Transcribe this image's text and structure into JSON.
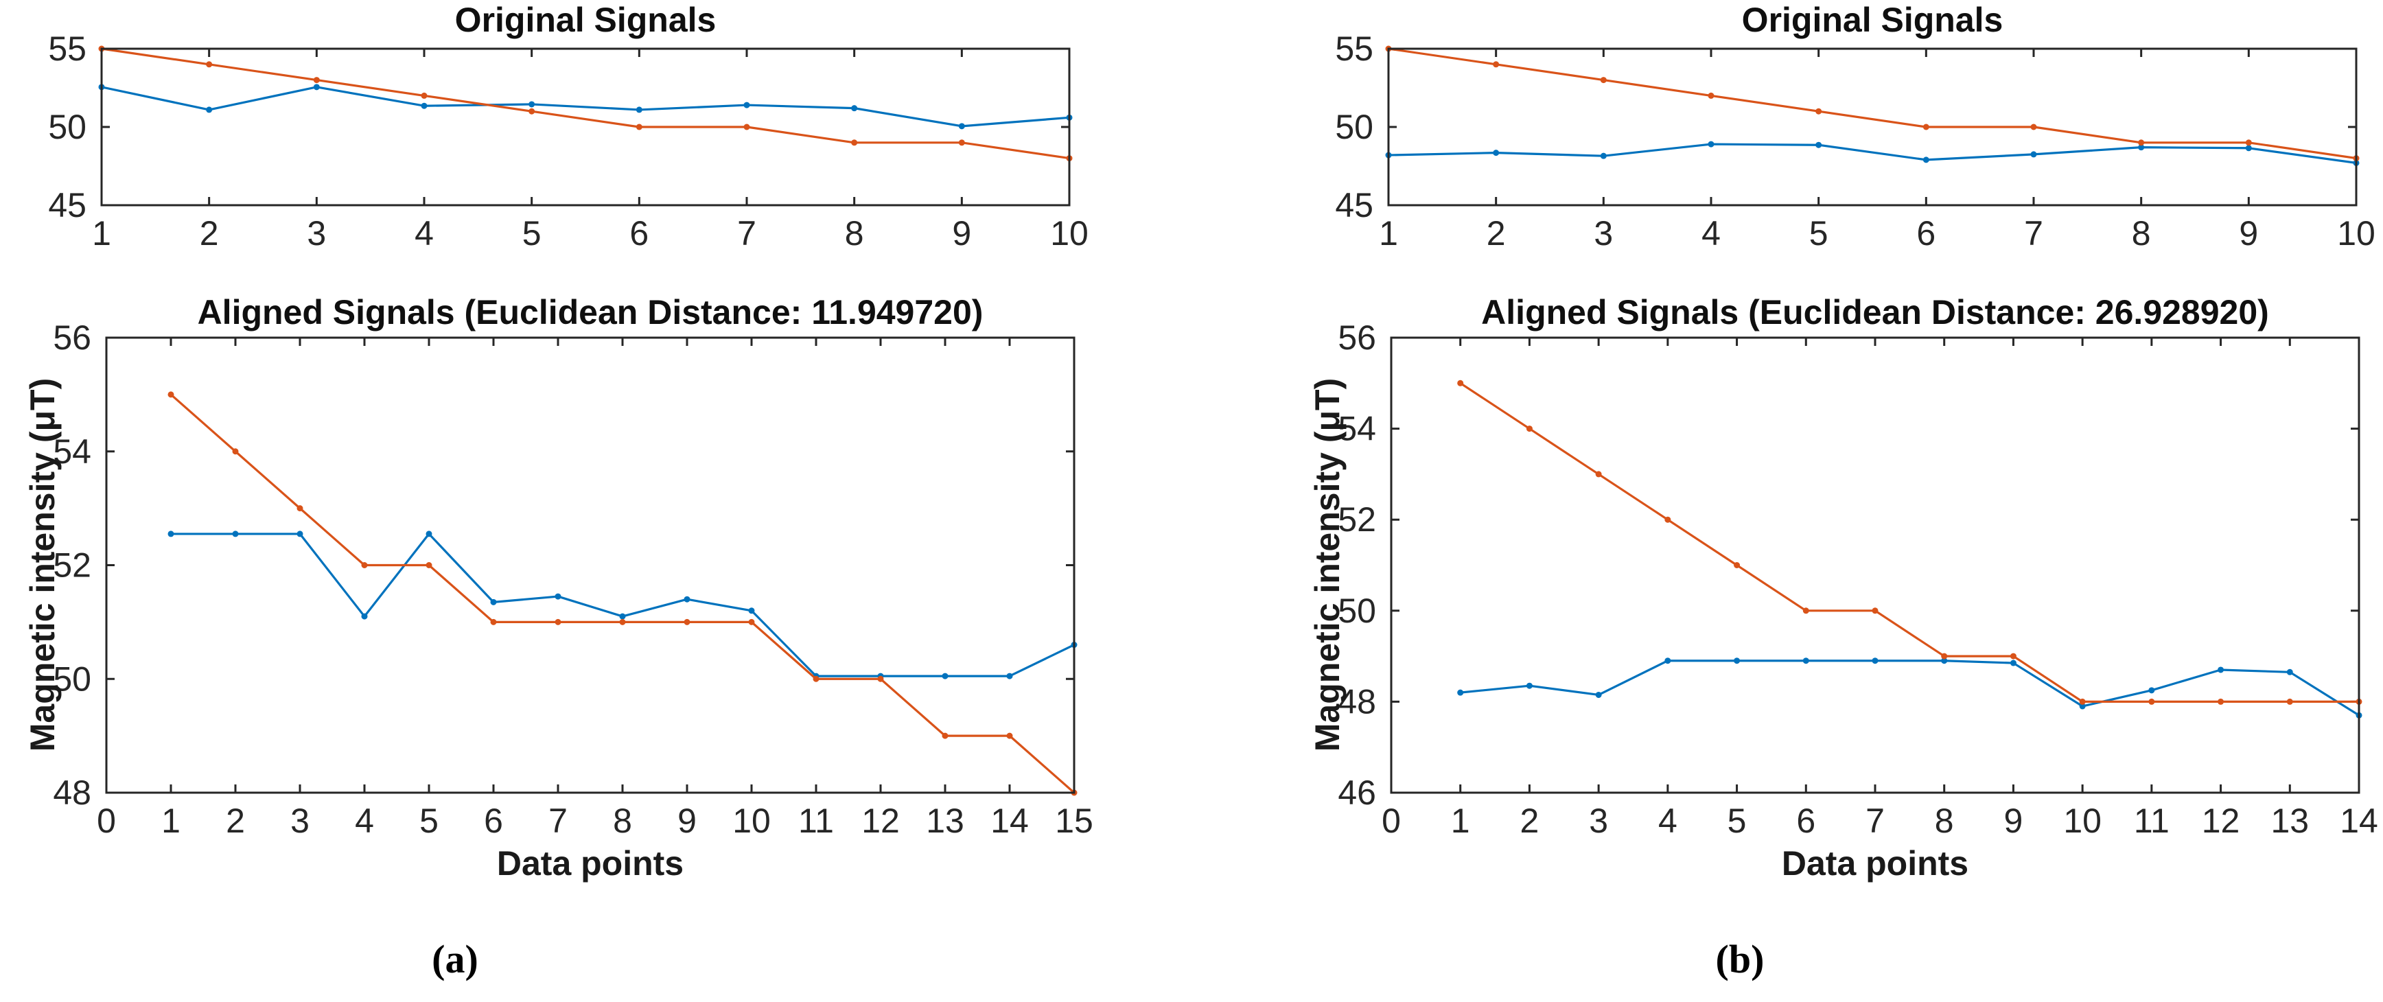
{
  "figure": {
    "background": "#ffffff",
    "captions": {
      "a": "(a)",
      "b": "(b)"
    }
  },
  "colors": {
    "signal_blue": "#0072BD",
    "signal_orange": "#D95319",
    "axis": "#262626"
  },
  "chart_data": [
    {
      "id": "original-a",
      "type": "line",
      "title": "Original Signals",
      "xlabel": "",
      "ylabel": "",
      "xlim": [
        1,
        10
      ],
      "ylim": [
        45,
        55
      ],
      "xticks": [
        1,
        2,
        3,
        4,
        5,
        6,
        7,
        8,
        9,
        10
      ],
      "yticks": [
        45,
        50,
        55
      ],
      "grid": false,
      "legend": "none",
      "series": [
        {
          "name": "measured-signal-blue",
          "color": "#0072BD",
          "x": [
            1,
            2,
            3,
            4,
            5,
            6,
            7,
            8,
            9,
            10
          ],
          "y": [
            52.55,
            51.1,
            52.55,
            51.35,
            51.45,
            51.1,
            51.4,
            51.2,
            50.05,
            50.6
          ]
        },
        {
          "name": "reference-signal-orange",
          "color": "#D95319",
          "x": [
            1,
            2,
            3,
            4,
            5,
            6,
            7,
            8,
            9,
            10
          ],
          "y": [
            55,
            54,
            53,
            52,
            51,
            50,
            50,
            49,
            49,
            48
          ]
        }
      ]
    },
    {
      "id": "original-b",
      "type": "line",
      "title": "Original Signals",
      "xlabel": "",
      "ylabel": "",
      "xlim": [
        1,
        10
      ],
      "ylim": [
        45,
        55
      ],
      "xticks": [
        1,
        2,
        3,
        4,
        5,
        6,
        7,
        8,
        9,
        10
      ],
      "yticks": [
        45,
        50,
        55
      ],
      "grid": false,
      "legend": "none",
      "series": [
        {
          "name": "measured-signal-blue",
          "color": "#0072BD",
          "x": [
            1,
            2,
            3,
            4,
            5,
            6,
            7,
            8,
            9,
            10
          ],
          "y": [
            48.2,
            48.35,
            48.15,
            48.9,
            48.85,
            47.9,
            48.25,
            48.7,
            48.65,
            47.7
          ]
        },
        {
          "name": "reference-signal-orange",
          "color": "#D95319",
          "x": [
            1,
            2,
            3,
            4,
            5,
            6,
            7,
            8,
            9,
            10
          ],
          "y": [
            55,
            54,
            53,
            52,
            51,
            50,
            50,
            49,
            49,
            48
          ]
        }
      ]
    },
    {
      "id": "aligned-a",
      "type": "line",
      "title": "Aligned Signals (Euclidean Distance: 11.949720)",
      "xlabel": "Data points",
      "ylabel": "Magnetic intensity (μT)",
      "xlim": [
        0,
        15
      ],
      "ylim": [
        48,
        56
      ],
      "xticks": [
        0,
        1,
        2,
        3,
        4,
        5,
        6,
        7,
        8,
        9,
        10,
        11,
        12,
        13,
        14,
        15
      ],
      "yticks": [
        48,
        50,
        52,
        54,
        56
      ],
      "grid": false,
      "legend": "none",
      "series": [
        {
          "name": "aligned-measured-signal-blue",
          "color": "#0072BD",
          "x": [
            1,
            2,
            3,
            4,
            5,
            6,
            7,
            8,
            9,
            10,
            11,
            12,
            13,
            14,
            15
          ],
          "y": [
            52.55,
            52.55,
            52.55,
            51.1,
            52.55,
            51.35,
            51.45,
            51.1,
            51.4,
            51.2,
            50.05,
            50.05,
            50.05,
            50.05,
            50.6
          ]
        },
        {
          "name": "aligned-reference-signal-orange",
          "color": "#D95319",
          "x": [
            1,
            2,
            3,
            4,
            5,
            6,
            7,
            8,
            9,
            10,
            11,
            12,
            13,
            14,
            15
          ],
          "y": [
            55,
            54,
            53,
            52,
            52,
            51,
            51,
            51,
            51,
            51,
            50,
            50,
            49,
            49,
            48
          ]
        }
      ]
    },
    {
      "id": "aligned-b",
      "type": "line",
      "title": "Aligned Signals (Euclidean Distance: 26.928920)",
      "xlabel": "Data points",
      "ylabel": "Magnetic intensity (μT)",
      "xlim": [
        0,
        14
      ],
      "ylim": [
        46,
        56
      ],
      "xticks": [
        0,
        1,
        2,
        3,
        4,
        5,
        6,
        7,
        8,
        9,
        10,
        11,
        12,
        13,
        14
      ],
      "yticks": [
        46,
        48,
        50,
        52,
        54,
        56
      ],
      "grid": false,
      "legend": "none",
      "series": [
        {
          "name": "aligned-measured-signal-blue",
          "color": "#0072BD",
          "x": [
            1,
            2,
            3,
            4,
            5,
            6,
            7,
            8,
            9,
            10,
            11,
            12,
            13,
            14
          ],
          "y": [
            48.2,
            48.35,
            48.15,
            48.9,
            48.9,
            48.9,
            48.9,
            48.9,
            48.85,
            47.9,
            48.25,
            48.7,
            48.65,
            47.7
          ]
        },
        {
          "name": "aligned-reference-signal-orange",
          "color": "#D95319",
          "x": [
            1,
            2,
            3,
            4,
            5,
            6,
            7,
            8,
            9,
            10,
            11,
            12,
            13,
            14
          ],
          "y": [
            55,
            54,
            53,
            52,
            51,
            50,
            50,
            49,
            49,
            48,
            48,
            48,
            48,
            48
          ]
        }
      ]
    }
  ]
}
